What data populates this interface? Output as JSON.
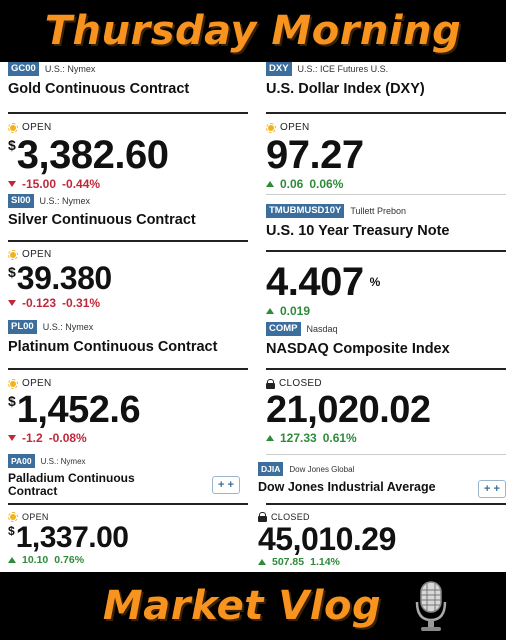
{
  "banner_top": {
    "title": "Thursday Morning"
  },
  "banner_bottom": {
    "title": "Market Vlog",
    "icon": "microphone-icon"
  },
  "colors": {
    "accent": "#f7931e",
    "ticker_bg": "#3b6e9c",
    "up": "#2e8b3a",
    "down": "#c0283a"
  },
  "left": [
    {
      "ticker": "GC00",
      "source": "U.S.: Nymex",
      "name": "Gold Continuous Contract",
      "status": "OPEN",
      "currency": "$",
      "price": "3,382.60",
      "change": "-15.00",
      "change_pct": "-0.44%",
      "direction": "down"
    },
    {
      "ticker": "SI00",
      "source": "U.S.: Nymex",
      "name": "Silver Continuous Contract",
      "status": "OPEN",
      "currency": "$",
      "price": "39.380",
      "change": "-0.123",
      "change_pct": "-0.31%",
      "direction": "down"
    },
    {
      "ticker": "PL00",
      "source": "U.S.: Nymex",
      "name": "Platinum Continuous Contract",
      "status": "OPEN",
      "currency": "$",
      "price": "1,452.6",
      "change": "-1.2",
      "change_pct": "-0.08%",
      "direction": "down"
    },
    {
      "ticker": "PA00",
      "source": "U.S.: Nymex",
      "name": "Palladium Continuous Contract",
      "status": "OPEN",
      "currency": "$",
      "price": "1,337.00",
      "change": "10.10",
      "change_pct": "0.76%",
      "direction": "up",
      "add_label": "+ +"
    }
  ],
  "right": [
    {
      "ticker": "DXY",
      "source": "U.S.: ICE Futures U.S.",
      "name": "U.S. Dollar Index (DXY)",
      "status": "OPEN",
      "price": "97.27",
      "change": "0.06",
      "change_pct": "0.06%",
      "direction": "up"
    },
    {
      "ticker": "TMUBMUSD10Y",
      "source": "Tullett Prebon",
      "name": "U.S. 10 Year Treasury Note",
      "price": "4.407",
      "unit": "%",
      "change": "0.019",
      "direction": "up"
    },
    {
      "ticker": "COMP",
      "source": "Nasdaq",
      "name": "NASDAQ Composite Index",
      "status": "CLOSED",
      "price": "21,020.02",
      "change": "127.33",
      "change_pct": "0.61%",
      "direction": "up"
    },
    {
      "ticker": "DJIA",
      "source": "Dow Jones Global",
      "name": "Dow Jones Industrial Average",
      "status": "CLOSED",
      "price": "45,010.29",
      "change": "507.85",
      "change_pct": "1.14%",
      "direction": "up",
      "add_label": "+ +"
    }
  ]
}
